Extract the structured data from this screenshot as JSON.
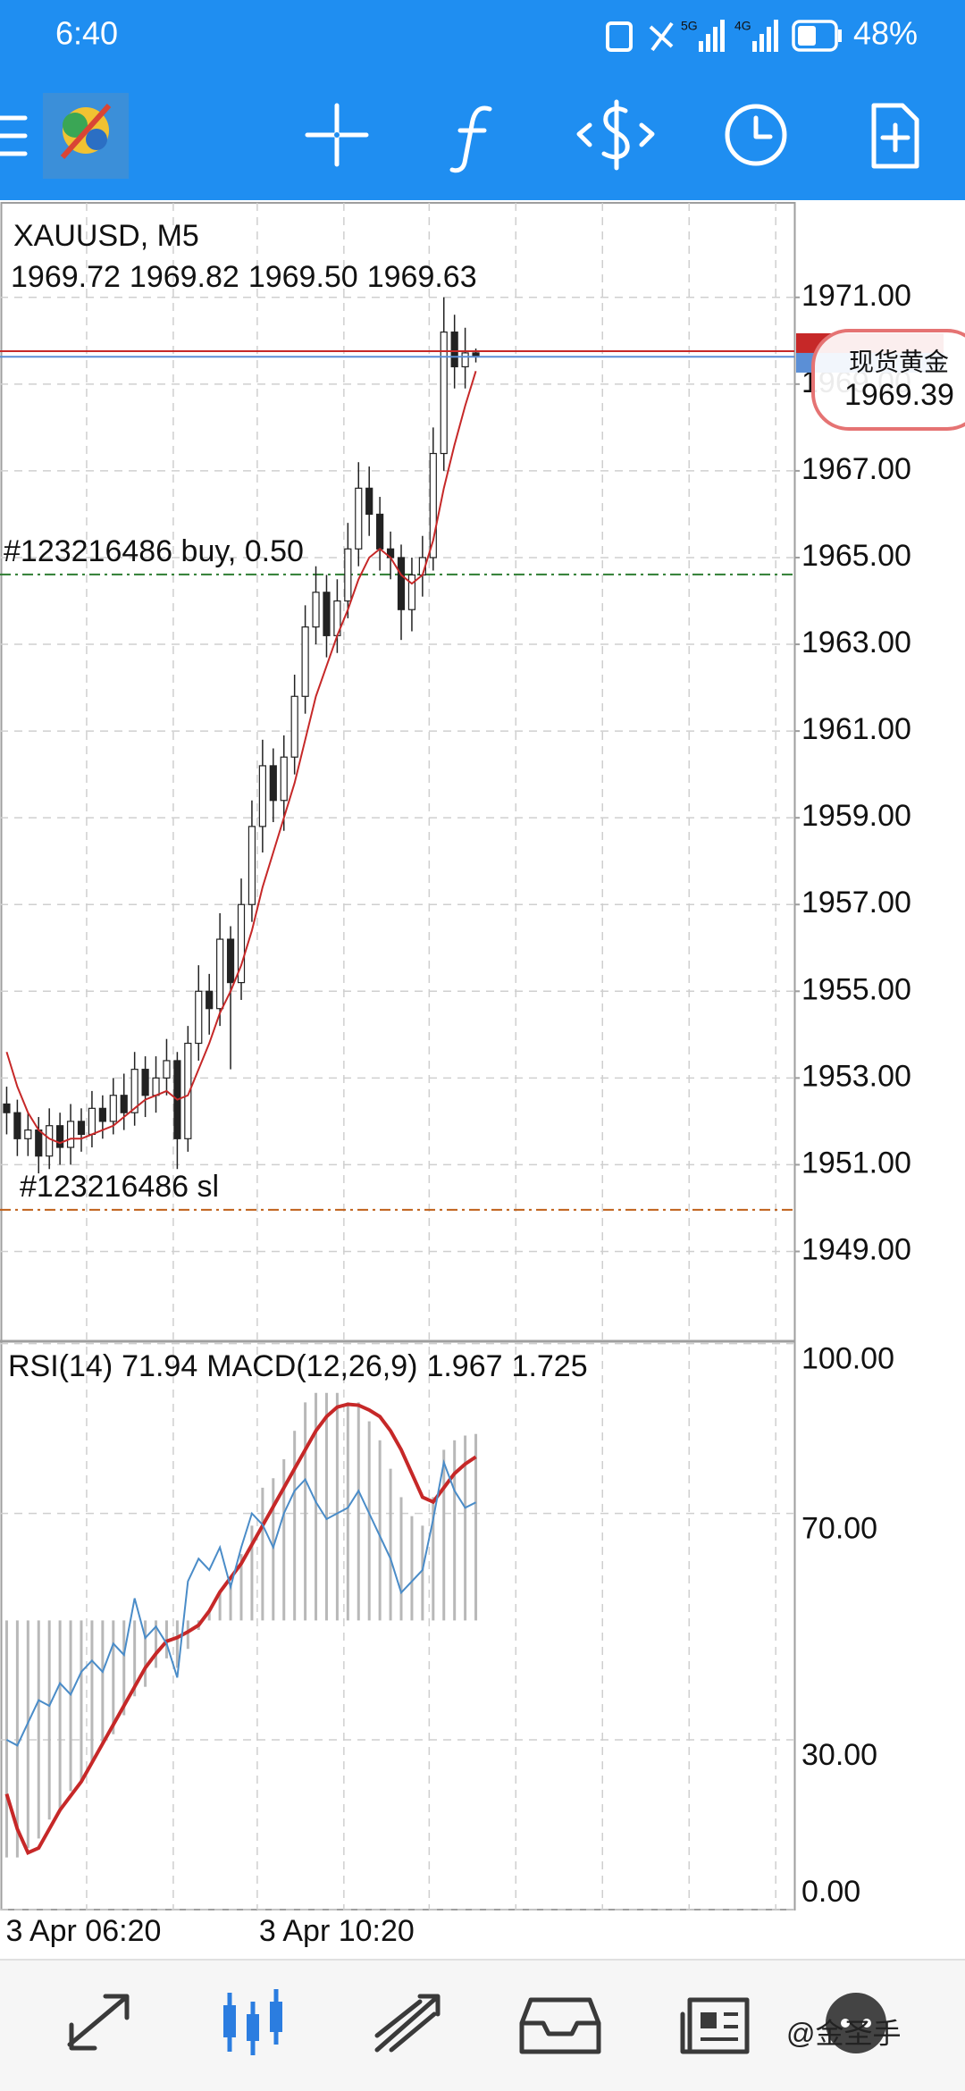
{
  "status_bar": {
    "time": "6:40",
    "network": [
      "5G",
      "4G"
    ],
    "battery": "48%"
  },
  "chart": {
    "type": "candlestick",
    "symbol": "XAUUSD, M5",
    "last_bar_labels": [
      "1969.72",
      "1969.82",
      "1969.50",
      "1969.63"
    ],
    "x_labels": [
      "3 Apr 06:20",
      "3 Apr 10:20"
    ],
    "open": [
      1952.4,
      1952.2,
      1951.6,
      1951.8,
      1951.2,
      1951.9,
      1951.4,
      1952.0,
      1951.7,
      1952.3,
      1952.0,
      1952.6,
      1952.2,
      1953.2,
      1952.6,
      1953.0,
      1953.4,
      1951.6,
      1953.8,
      1955.0,
      1954.6,
      1956.2,
      1955.2,
      1957.0,
      1958.8,
      1960.2,
      1959.4,
      1960.4,
      1961.8,
      1963.4,
      1964.2,
      1963.2,
      1964.0,
      1965.2,
      1966.6,
      1966.0,
      1965.2,
      1965.0,
      1963.8,
      1964.6,
      1965.0,
      1967.4,
      1970.2,
      1969.4,
      1969.72
    ],
    "high": [
      1952.8,
      1952.5,
      1952.2,
      1952.1,
      1952.3,
      1952.2,
      1952.4,
      1952.3,
      1952.7,
      1952.6,
      1953.0,
      1953.1,
      1953.6,
      1953.5,
      1953.5,
      1953.9,
      1953.6,
      1954.2,
      1955.6,
      1955.4,
      1956.8,
      1956.5,
      1957.6,
      1959.4,
      1960.8,
      1960.6,
      1960.9,
      1962.3,
      1963.9,
      1964.8,
      1964.6,
      1964.5,
      1965.8,
      1967.2,
      1967.1,
      1966.4,
      1965.6,
      1965.3,
      1965.0,
      1965.5,
      1968.0,
      1971.0,
      1970.6,
      1970.3,
      1969.82
    ],
    "low": [
      1951.7,
      1951.2,
      1951.2,
      1950.8,
      1950.9,
      1951.0,
      1951.0,
      1951.3,
      1951.4,
      1951.6,
      1951.7,
      1951.8,
      1951.9,
      1952.1,
      1952.2,
      1952.6,
      1950.9,
      1951.3,
      1953.4,
      1954.0,
      1954.2,
      1953.2,
      1954.8,
      1956.6,
      1958.2,
      1958.9,
      1958.7,
      1960.0,
      1961.4,
      1963.0,
      1962.7,
      1962.8,
      1963.6,
      1964.8,
      1965.5,
      1964.7,
      1964.5,
      1963.1,
      1963.3,
      1964.1,
      1964.7,
      1967.0,
      1968.9,
      1968.9,
      1969.5
    ],
    "close": [
      1952.2,
      1951.6,
      1951.8,
      1951.2,
      1951.9,
      1951.4,
      1952.0,
      1951.7,
      1952.3,
      1952.0,
      1952.6,
      1952.2,
      1953.2,
      1952.6,
      1953.0,
      1953.4,
      1951.6,
      1953.8,
      1955.0,
      1954.6,
      1956.2,
      1955.2,
      1957.0,
      1958.8,
      1960.2,
      1959.4,
      1960.4,
      1961.8,
      1963.4,
      1964.2,
      1963.2,
      1964.0,
      1965.2,
      1966.6,
      1966.0,
      1965.2,
      1965.0,
      1963.8,
      1964.6,
      1965.0,
      1967.4,
      1970.2,
      1969.4,
      1969.72,
      1969.63
    ],
    "ma": [
      1953.6,
      1952.8,
      1952.2,
      1951.8,
      1951.6,
      1951.5,
      1951.6,
      1951.6,
      1951.7,
      1951.8,
      1951.9,
      1952.1,
      1952.3,
      1952.5,
      1952.6,
      1952.7,
      1952.5,
      1952.6,
      1953.2,
      1953.8,
      1954.5,
      1955.0,
      1955.6,
      1956.4,
      1957.4,
      1958.2,
      1959.0,
      1959.8,
      1960.8,
      1961.8,
      1962.5,
      1963.2,
      1963.8,
      1964.5,
      1965.0,
      1965.2,
      1965.0,
      1964.6,
      1964.4,
      1964.6,
      1965.4,
      1966.6,
      1967.6,
      1968.5,
      1969.3
    ],
    "ma_color": "#c62828",
    "candle_color": "#222222",
    "ylim": [
      1946.97,
      1973.18
    ],
    "yticks": [
      {
        "value": 1971,
        "label": "1971.00"
      },
      {
        "value": 1969,
        "label": "1969.00"
      },
      {
        "value": 1967,
        "label": "1967.00"
      },
      {
        "value": 1965,
        "label": "1965.00"
      },
      {
        "value": 1963,
        "label": "1963.00"
      },
      {
        "value": 1961,
        "label": "1961.00"
      },
      {
        "value": 1959,
        "label": "1959.00"
      },
      {
        "value": 1957,
        "label": "1957.00"
      },
      {
        "value": 1955,
        "label": "1955.00"
      },
      {
        "value": 1953,
        "label": "1953.00"
      },
      {
        "value": 1951,
        "label": "1951.00"
      },
      {
        "value": 1949,
        "label": "1949.00"
      }
    ],
    "grid": true,
    "ask_line": 1969.76,
    "ask_color": "#c62828",
    "bid_color": "#5b8fd6",
    "orders": [
      {
        "label": "#123216486 buy, 0.50",
        "price": 1964.61,
        "color": "#2e7d32"
      },
      {
        "label": "#123216486 sl",
        "price": 1949.96,
        "color": "#c0601a"
      }
    ]
  },
  "indicators": {
    "rsi_label": "RSI(14)",
    "macd_label": "MACD(12,26,9)",
    "rsi": [
      30,
      29,
      33,
      37,
      36,
      40,
      38,
      42,
      44,
      42,
      47,
      45,
      55,
      48,
      50,
      47,
      41,
      58,
      62,
      60,
      64,
      57,
      64,
      70,
      68,
      64,
      70,
      74,
      76,
      72,
      69,
      70,
      71,
      74,
      70,
      66,
      62,
      56,
      58,
      60,
      69,
      79,
      74,
      71,
      71.94
    ],
    "rsi_color": "#4a8cc8",
    "macd": [
      -2.5,
      -2.5,
      -2.4,
      -2.3,
      -2.1,
      -2.0,
      -1.8,
      -1.7,
      -1.5,
      -1.3,
      -1.2,
      -1.0,
      -0.8,
      -0.7,
      -0.5,
      -0.4,
      -0.5,
      -0.3,
      -0.1,
      0.1,
      0.3,
      0.4,
      0.7,
      1.0,
      1.4,
      1.5,
      1.7,
      2.0,
      2.3,
      2.4,
      2.4,
      2.4,
      2.3,
      2.3,
      2.1,
      1.9,
      1.6,
      1.3,
      1.1,
      1.0,
      1.3,
      1.8,
      1.9,
      1.95,
      1.967
    ],
    "macd_color": "#b8b8b8",
    "signal": [
      -1.83,
      -2.2,
      -2.45,
      -2.4,
      -2.2,
      -2.0,
      -1.85,
      -1.7,
      -1.5,
      -1.3,
      -1.1,
      -0.9,
      -0.7,
      -0.5,
      -0.35,
      -0.22,
      -0.18,
      -0.12,
      -0.05,
      0.1,
      0.3,
      0.45,
      0.6,
      0.8,
      1.0,
      1.2,
      1.4,
      1.6,
      1.8,
      2.0,
      2.15,
      2.25,
      2.28,
      2.27,
      2.22,
      2.15,
      2.0,
      1.8,
      1.55,
      1.3,
      1.25,
      1.4,
      1.55,
      1.65,
      1.725
    ],
    "signal_color": "#c62828",
    "ylim": [
      0,
      100
    ],
    "yticks": [
      {
        "value": 100,
        "label": "100.00"
      },
      {
        "value": 70,
        "label": "70.00"
      },
      {
        "value": 30,
        "label": "30.00"
      },
      {
        "value": 0,
        "label": "0.00"
      }
    ],
    "y2lim": [
      -3.05,
      2.92
    ]
  },
  "overlay": {
    "title": "现货黄金",
    "price": 1969.39
  },
  "watermark": "@金圣手"
}
